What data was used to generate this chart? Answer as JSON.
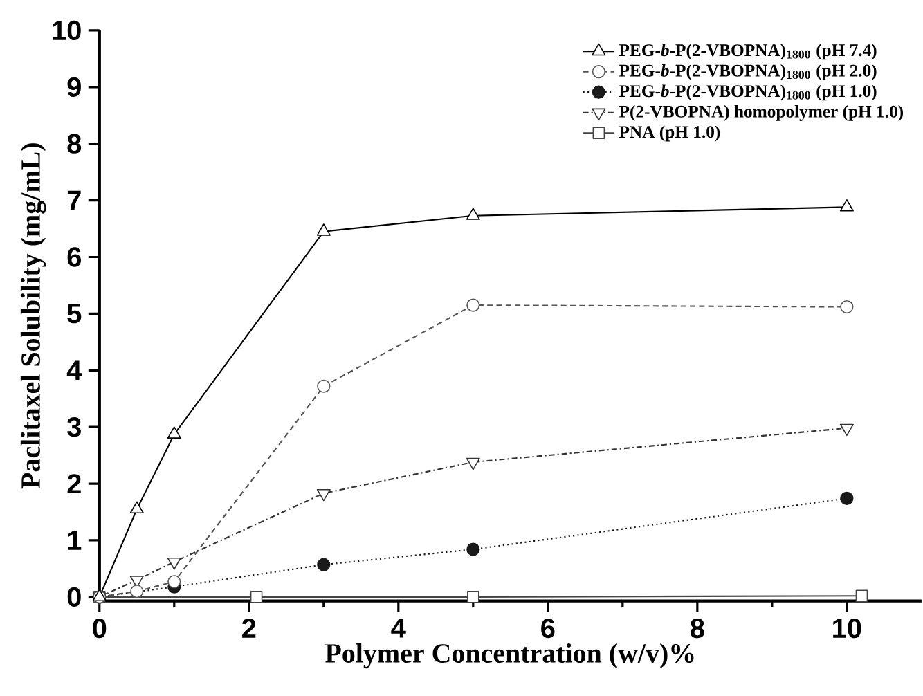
{
  "chart_data": {
    "type": "line",
    "xlabel": "Polymer Concentration (w/v)%",
    "ylabel": "Paclitaxel Solubility (mg/mL)",
    "xlim": [
      0,
      11
    ],
    "ylim": [
      -0.07,
      10
    ],
    "xticks": [
      0,
      2,
      4,
      6,
      8,
      10
    ],
    "yticks": [
      0,
      1,
      2,
      3,
      4,
      5,
      6,
      7,
      8,
      9,
      10
    ],
    "grid": false,
    "legend": "top right",
    "series": [
      {
        "name": "PEG-*b*-P(2-VBOPNA)$_{1800}$ (pH 7.4)",
        "color": "#000000",
        "marker": "triangle",
        "line_style": "solid",
        "x": [
          0,
          0.5,
          1,
          3,
          5,
          10
        ],
        "values": [
          0,
          1.55,
          2.87,
          6.45,
          6.73,
          6.88
        ]
      },
      {
        "name": "PEG-*b*-P(2-VBOPNA)$_{1800}$ (pH 2.0)",
        "color": "#555555",
        "marker": "circle",
        "line_style": "dashed",
        "x": [
          0,
          0.5,
          1,
          3,
          5,
          10
        ],
        "values": [
          0,
          0.1,
          0.27,
          3.72,
          5.15,
          5.12
        ]
      },
      {
        "name": "PEG-*b*-P(2-VBOPNA)$_{1800}$ (pH 1.0)",
        "color": "#1a1a1a",
        "marker": "circle",
        "line_style": "dotted",
        "x": [
          0,
          1,
          3,
          5,
          10
        ],
        "values": [
          0,
          0.18,
          0.57,
          0.84,
          1.74
        ]
      },
      {
        "name": "P(2-VBOPNA) homopolymer (pH 1.0)",
        "color": "#333333",
        "marker": "triangle",
        "line_style": "dashdot",
        "x": [
          0,
          0.5,
          1,
          3,
          5,
          10
        ],
        "values": [
          0,
          0.3,
          0.62,
          1.83,
          2.38,
          2.98
        ]
      },
      {
        "name": "PNA (pH 1.0)",
        "color": "#444444",
        "marker": "square",
        "line_style": "solid",
        "x": [
          0,
          2.1,
          5,
          10.2
        ],
        "values": [
          0,
          0,
          0,
          0.02
        ]
      }
    ]
  }
}
